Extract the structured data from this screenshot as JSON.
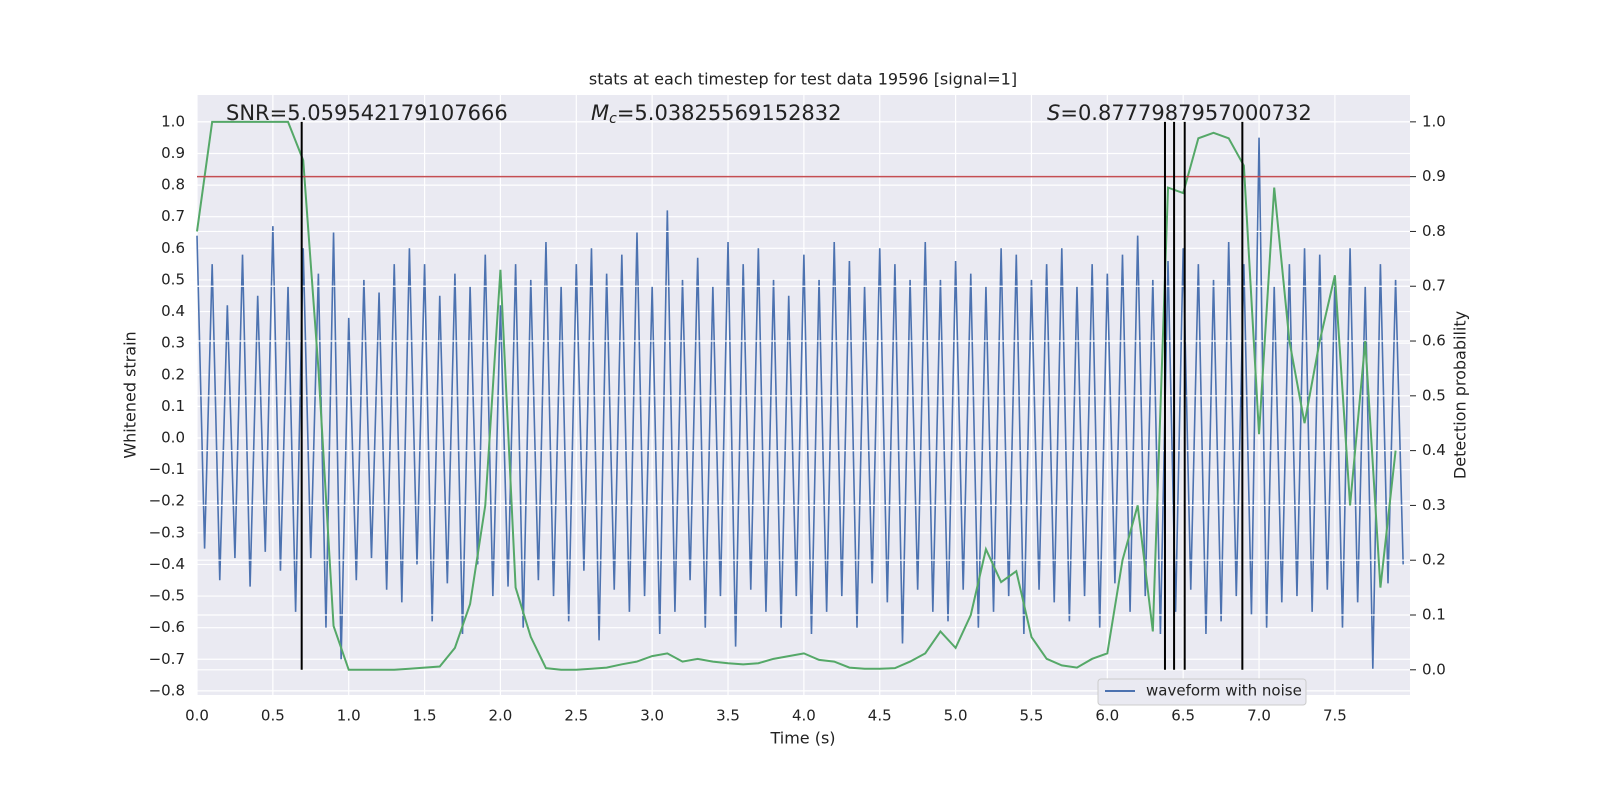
{
  "chart_data": {
    "type": "line",
    "title": "stats at each timestep for test data 19596 [signal=1]",
    "x_label": "Time (s)",
    "y_label": "Whitened strain",
    "y2_label": "Detection probability",
    "annotations": {
      "snr": "SNR=5.059542179107666",
      "mc": {
        "symbol": "M",
        "subscript": "c",
        "text": "=5.03825569152832"
      },
      "s": {
        "symbol": "S",
        "text": "=0.8777987957000732"
      }
    },
    "xlim": [
      0,
      7.995
    ],
    "ylim": [
      -0.813,
      1.085
    ],
    "y2lim": [
      -0.046,
      1.049
    ],
    "grid": true,
    "legend": "lower right",
    "xticks": [
      {
        "value": 0,
        "label": "0.0"
      },
      {
        "value": 0.5,
        "label": "0.5"
      },
      {
        "value": 1,
        "label": "1.0"
      },
      {
        "value": 1.5,
        "label": "1.5"
      },
      {
        "value": 2,
        "label": "2.0"
      },
      {
        "value": 2.5,
        "label": "2.5"
      },
      {
        "value": 3,
        "label": "3.0"
      },
      {
        "value": 3.5,
        "label": "3.5"
      },
      {
        "value": 4,
        "label": "4.0"
      },
      {
        "value": 4.5,
        "label": "4.5"
      },
      {
        "value": 5,
        "label": "5.0"
      },
      {
        "value": 5.5,
        "label": "5.5"
      },
      {
        "value": 6,
        "label": "6.0"
      },
      {
        "value": 6.5,
        "label": "6.5"
      },
      {
        "value": 7,
        "label": "7.0"
      },
      {
        "value": 7.5,
        "label": "7.5"
      }
    ],
    "yticks": [
      {
        "value": -0.8,
        "label": "−0.8"
      },
      {
        "value": -0.7,
        "label": "−0.7"
      },
      {
        "value": -0.6,
        "label": "−0.6"
      },
      {
        "value": -0.5,
        "label": "−0.5"
      },
      {
        "value": -0.4,
        "label": "−0.4"
      },
      {
        "value": -0.3,
        "label": "−0.3"
      },
      {
        "value": -0.2,
        "label": "−0.2"
      },
      {
        "value": -0.1,
        "label": "−0.1"
      },
      {
        "value": 0,
        "label": "0.0"
      },
      {
        "value": 0.1,
        "label": "0.1"
      },
      {
        "value": 0.2,
        "label": "0.2"
      },
      {
        "value": 0.3,
        "label": "0.3"
      },
      {
        "value": 0.4,
        "label": "0.4"
      },
      {
        "value": 0.5,
        "label": "0.5"
      },
      {
        "value": 0.6,
        "label": "0.6"
      },
      {
        "value": 0.7,
        "label": "0.7"
      },
      {
        "value": 0.8,
        "label": "0.8"
      },
      {
        "value": 0.9,
        "label": "0.9"
      },
      {
        "value": 1,
        "label": "1.0"
      }
    ],
    "y2ticks": [
      {
        "value": 0,
        "label": "0.0"
      },
      {
        "value": 0.1,
        "label": "0.1"
      },
      {
        "value": 0.2,
        "label": "0.2"
      },
      {
        "value": 0.3,
        "label": "0.3"
      },
      {
        "value": 0.4,
        "label": "0.4"
      },
      {
        "value": 0.5,
        "label": "0.5"
      },
      {
        "value": 0.6,
        "label": "0.6"
      },
      {
        "value": 0.7,
        "label": "0.7"
      },
      {
        "value": 0.8,
        "label": "0.8"
      },
      {
        "value": 0.9,
        "label": "0.9"
      },
      {
        "value": 1,
        "label": "1.0"
      }
    ],
    "hline": {
      "y": 0.9,
      "axis": "y2",
      "color": "#c44e52"
    },
    "vlines": {
      "x": [
        0.69,
        6.38,
        6.44,
        6.51,
        6.89
      ],
      "ymin": 0,
      "ymax": 1,
      "axis": "y2",
      "color": "#000000"
    },
    "series": [
      {
        "name": "waveform with noise",
        "color": "#4c72b0",
        "x": [
          0,
          0.05,
          0.1,
          0.15,
          0.2,
          0.25,
          0.3,
          0.35,
          0.4,
          0.45,
          0.5,
          0.55,
          0.6,
          0.65,
          0.7,
          0.75,
          0.8,
          0.85,
          0.9,
          0.95,
          1,
          1.05,
          1.1,
          1.15,
          1.2,
          1.25,
          1.3,
          1.35,
          1.4,
          1.45,
          1.5,
          1.55,
          1.6,
          1.65,
          1.7,
          1.75,
          1.8,
          1.85,
          1.9,
          1.95,
          2,
          2.05,
          2.1,
          2.15,
          2.2,
          2.25,
          2.3,
          2.35,
          2.4,
          2.45,
          2.5,
          2.55,
          2.6,
          2.65,
          2.7,
          2.75,
          2.8,
          2.85,
          2.9,
          2.95,
          3,
          3.05,
          3.1,
          3.15,
          3.2,
          3.25,
          3.3,
          3.35,
          3.4,
          3.45,
          3.5,
          3.55,
          3.6,
          3.65,
          3.7,
          3.75,
          3.8,
          3.85,
          3.9,
          3.95,
          4,
          4.05,
          4.1,
          4.15,
          4.2,
          4.25,
          4.3,
          4.35,
          4.4,
          4.45,
          4.5,
          4.55,
          4.6,
          4.65,
          4.7,
          4.75,
          4.8,
          4.85,
          4.9,
          4.95,
          5,
          5.05,
          5.1,
          5.15,
          5.2,
          5.25,
          5.3,
          5.35,
          5.4,
          5.45,
          5.5,
          5.55,
          5.6,
          5.65,
          5.7,
          5.75,
          5.8,
          5.85,
          5.9,
          5.95,
          6,
          6.05,
          6.1,
          6.15,
          6.2,
          6.25,
          6.3,
          6.35,
          6.4,
          6.45,
          6.5,
          6.55,
          6.6,
          6.65,
          6.7,
          6.75,
          6.8,
          6.85,
          6.9,
          6.95,
          7,
          7.05,
          7.1,
          7.15,
          7.2,
          7.25,
          7.3,
          7.35,
          7.4,
          7.45,
          7.5,
          7.55,
          7.6,
          7.65,
          7.7,
          7.75,
          7.8,
          7.85,
          7.9,
          7.95
        ],
        "values": [
          0.64,
          -0.35,
          0.55,
          -0.45,
          0.42,
          -0.38,
          0.58,
          -0.47,
          0.45,
          -0.36,
          0.67,
          -0.42,
          0.48,
          -0.55,
          0.6,
          -0.38,
          0.52,
          -0.6,
          0.65,
          -0.7,
          0.38,
          -0.45,
          0.5,
          -0.38,
          0.46,
          -0.48,
          0.55,
          -0.52,
          0.6,
          -0.4,
          0.55,
          -0.58,
          0.45,
          -0.46,
          0.52,
          -0.62,
          0.48,
          -0.4,
          0.58,
          -0.5,
          0.42,
          -0.47,
          0.55,
          -0.6,
          0.5,
          -0.45,
          0.62,
          -0.5,
          0.48,
          -0.58,
          0.55,
          -0.42,
          0.6,
          -0.64,
          0.52,
          -0.48,
          0.58,
          -0.55,
          0.65,
          -0.5,
          0.48,
          -0.62,
          0.72,
          -0.55,
          0.5,
          -0.45,
          0.57,
          -0.6,
          0.48,
          -0.5,
          0.62,
          -0.66,
          0.55,
          -0.48,
          0.6,
          -0.55,
          0.5,
          -0.6,
          0.45,
          -0.5,
          0.58,
          -0.62,
          0.5,
          -0.55,
          0.62,
          -0.5,
          0.56,
          -0.6,
          0.48,
          -0.46,
          0.6,
          -0.52,
          0.55,
          -0.65,
          0.5,
          -0.48,
          0.62,
          -0.55,
          0.5,
          -0.58,
          0.56,
          -0.48,
          0.52,
          -0.6,
          0.48,
          -0.55,
          0.6,
          -0.5,
          0.58,
          -0.62,
          0.5,
          -0.48,
          0.55,
          -0.52,
          0.6,
          -0.58,
          0.48,
          -0.5,
          0.55,
          -0.6,
          0.52,
          -0.46,
          0.58,
          -0.55,
          0.64,
          -0.5,
          0.5,
          -0.62,
          0.56,
          -0.55,
          0.6,
          -0.48,
          0.55,
          -0.62,
          0.5,
          -0.58,
          0.62,
          -0.5,
          0.55,
          -0.56,
          0.95,
          -0.6,
          0.48,
          -0.52,
          0.55,
          -0.5,
          0.6,
          -0.55,
          0.58,
          -0.48,
          0.5,
          -0.6,
          0.6,
          -0.52,
          0.48,
          -0.73,
          0.55,
          -0.46,
          0.5,
          -0.4
        ]
      },
      {
        "color": "#55a868",
        "axis": "y2",
        "x": [
          0,
          0.1,
          0.2,
          0.3,
          0.4,
          0.5,
          0.6,
          0.7,
          0.8,
          0.9,
          1,
          1.1,
          1.2,
          1.3,
          1.4,
          1.5,
          1.6,
          1.7,
          1.8,
          1.9,
          2,
          2.1,
          2.2,
          2.3,
          2.4,
          2.5,
          2.6,
          2.7,
          2.8,
          2.9,
          3,
          3.1,
          3.2,
          3.3,
          3.4,
          3.5,
          3.6,
          3.7,
          3.8,
          3.9,
          4,
          4.1,
          4.2,
          4.3,
          4.4,
          4.5,
          4.6,
          4.7,
          4.8,
          4.9,
          5,
          5.1,
          5.2,
          5.3,
          5.4,
          5.5,
          5.6,
          5.7,
          5.8,
          5.9,
          6,
          6.1,
          6.2,
          6.3,
          6.4,
          6.5,
          6.6,
          6.7,
          6.8,
          6.9,
          7,
          7.1,
          7.2,
          7.3,
          7.4,
          7.5,
          7.6,
          7.7,
          7.8,
          7.9
        ],
        "values": [
          0.8,
          1,
          1,
          1,
          1,
          1,
          1,
          0.93,
          0.55,
          0.08,
          0,
          0,
          0,
          0,
          0.002,
          0.004,
          0.006,
          0.04,
          0.12,
          0.3,
          0.73,
          0.15,
          0.06,
          0.003,
          0,
          0,
          0.002,
          0.004,
          0.01,
          0.015,
          0.025,
          0.03,
          0.015,
          0.02,
          0.015,
          0.012,
          0.01,
          0.012,
          0.02,
          0.025,
          0.03,
          0.018,
          0.015,
          0.004,
          0.002,
          0.002,
          0.003,
          0.015,
          0.03,
          0.07,
          0.04,
          0.1,
          0.22,
          0.16,
          0.18,
          0.06,
          0.02,
          0.008,
          0.004,
          0.02,
          0.03,
          0.2,
          0.3,
          0.07,
          0.88,
          0.87,
          0.97,
          0.98,
          0.97,
          0.92,
          0.43,
          0.88,
          0.6,
          0.45,
          0.6,
          0.72,
          0.3,
          0.6,
          0.15,
          0.4
        ]
      }
    ]
  }
}
